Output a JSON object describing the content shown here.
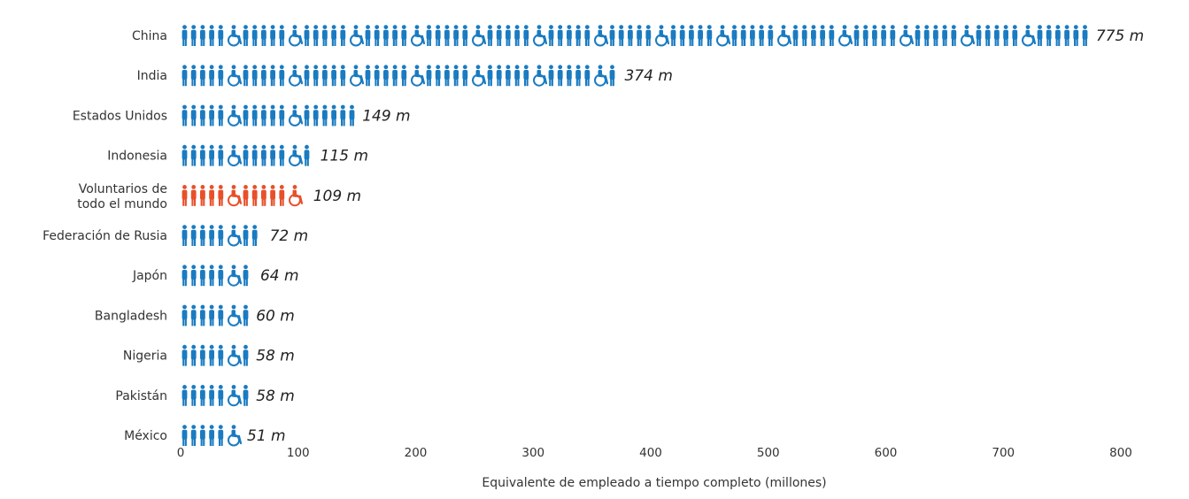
{
  "chart_data": {
    "type": "bar",
    "style": "pictogram",
    "categories": [
      "China",
      "India",
      "Estados Unidos",
      "Indonesia",
      "Voluntarios de todo el mundo",
      "Federación de Rusia",
      "Japón",
      "Bangladesh",
      "Nigeria",
      "Pakistán",
      "México"
    ],
    "category_lines": [
      [
        "China"
      ],
      [
        "India"
      ],
      [
        "Estados Unidos"
      ],
      [
        "Indonesia"
      ],
      [
        "Voluntarios de",
        "todo el mundo"
      ],
      [
        "Federación de Rusia"
      ],
      [
        "Japón"
      ],
      [
        "Bangladesh"
      ],
      [
        "Nigeria"
      ],
      [
        "Pakistán"
      ],
      [
        "México"
      ]
    ],
    "values": [
      775,
      374,
      149,
      115,
      109,
      72,
      64,
      60,
      58,
      58,
      51
    ],
    "value_labels": [
      "775 m",
      "374 m",
      "149 m",
      "115 m",
      "109 m",
      "72 m",
      "64 m",
      "60 m",
      "58 m",
      "58 m",
      "51 m"
    ],
    "highlight_category": "Voluntarios de todo el mundo",
    "xlabel": "Equivalente de empleado a tiempo completo (millones)",
    "ylabel": "",
    "xlim": [
      0,
      800
    ],
    "xticks": [
      0,
      100,
      200,
      300,
      400,
      500,
      600,
      700,
      800
    ],
    "grid": false,
    "legend": "none",
    "colors": {
      "default": "#1a7bc1",
      "highlight": "#e8502a",
      "text": "#333333"
    }
  }
}
